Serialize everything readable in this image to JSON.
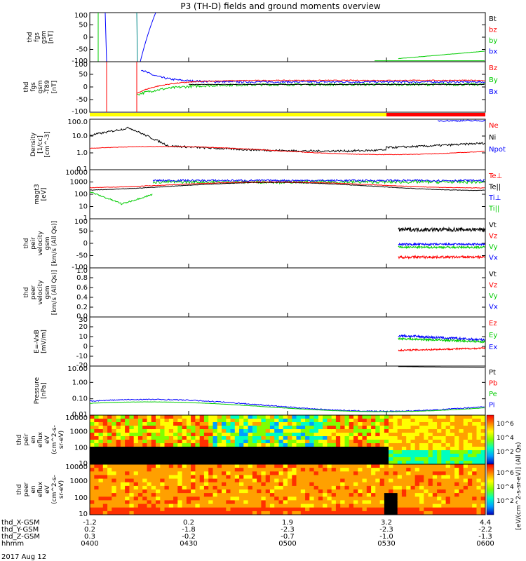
{
  "title": "P3 (TH-D) fields and ground moments overview",
  "date_label": "2017 Aug 12",
  "colors": {
    "black": "#000000",
    "red": "#ff0000",
    "green": "#00cc00",
    "blue": "#0000ff",
    "yellow": "#ffff00"
  },
  "chart_data": [
    {
      "type": "line",
      "ylabel": [
        "thd",
        "fgs",
        "gsm",
        "[nT]"
      ],
      "yticks": [
        "100",
        "50",
        "0",
        "-50",
        "-100"
      ],
      "ylim": [
        -100,
        100
      ],
      "legend": [
        {
          "name": "Bt",
          "color": "black"
        },
        {
          "name": "bz",
          "color": "red"
        },
        {
          "name": "by",
          "color": "green"
        },
        {
          "name": "bx",
          "color": "blue"
        }
      ]
    },
    {
      "type": "line",
      "ylabel": [
        "thd",
        "fgs",
        "gsm",
        "-T89",
        "[nT]"
      ],
      "yticks": [
        "100",
        "50",
        "0",
        "-50",
        "-100"
      ],
      "ylim": [
        -120,
        120
      ],
      "legend": [
        {
          "name": "Bz",
          "color": "red"
        },
        {
          "name": "By",
          "color": "green"
        },
        {
          "name": "Bx",
          "color": "blue"
        }
      ]
    },
    {
      "type": "line",
      "ylabel": [
        "Density",
        "[1/cc]",
        "[cm^-3]"
      ],
      "yticks": [
        "100.0",
        "10.0",
        "1.0",
        "0.1"
      ],
      "log": true,
      "legend": [
        {
          "name": "Ne",
          "color": "red"
        },
        {
          "name": "Ni",
          "color": "black"
        },
        {
          "name": "Npot",
          "color": "blue"
        }
      ]
    },
    {
      "type": "line",
      "ylabel": [
        "magt3",
        "[eV]"
      ],
      "yticks": [
        "10000",
        "1000",
        "100",
        "10",
        "1"
      ],
      "log": true,
      "legend": [
        {
          "name": "Te⊥",
          "color": "red"
        },
        {
          "name": "Te||",
          "color": "black"
        },
        {
          "name": "Ti⊥",
          "color": "blue"
        },
        {
          "name": "Ti||",
          "color": "green"
        }
      ]
    },
    {
      "type": "line",
      "ylabel": [
        "thd",
        "peir",
        "velocity",
        "gsm",
        "[km/s (All Qs)]"
      ],
      "yticks": [
        "100",
        "50",
        "0",
        "-50",
        "-100"
      ],
      "ylim": [
        -120,
        120
      ],
      "legend": [
        {
          "name": "Vt",
          "color": "black"
        },
        {
          "name": "Vz",
          "color": "red"
        },
        {
          "name": "Vy",
          "color": "green"
        },
        {
          "name": "Vx",
          "color": "blue"
        }
      ]
    },
    {
      "type": "line",
      "ylabel": [
        "thd",
        "peer",
        "velocity",
        "gsm",
        "[km/s (All Qs)]"
      ],
      "yticks": [
        "1.0",
        "0.8",
        "0.6",
        "0.4",
        "0.2",
        "0.0"
      ],
      "ylim": [
        0,
        1
      ],
      "legend": [
        {
          "name": "Vt",
          "color": "black"
        },
        {
          "name": "Vz",
          "color": "red"
        },
        {
          "name": "Vy",
          "color": "green"
        },
        {
          "name": "Vx",
          "color": "blue"
        }
      ]
    },
    {
      "type": "line",
      "ylabel": [
        "E=-VxB",
        "[mV/m]"
      ],
      "yticks": [
        "30",
        "20",
        "10",
        "0",
        "-10",
        "-20"
      ],
      "ylim": [
        -20,
        30
      ],
      "legend": [
        {
          "name": "Ez",
          "color": "red"
        },
        {
          "name": "Ey",
          "color": "green"
        },
        {
          "name": "Ex",
          "color": "blue"
        }
      ]
    },
    {
      "type": "line",
      "ylabel": [
        "Pressure",
        "[nPa]"
      ],
      "yticks": [
        "10.00",
        "1.00",
        "0.10",
        "0.01"
      ],
      "log": true,
      "legend": [
        {
          "name": "Pt",
          "color": "black"
        },
        {
          "name": "Pb",
          "color": "red"
        },
        {
          "name": "Pe",
          "color": "green"
        },
        {
          "name": "Pi",
          "color": "blue"
        }
      ]
    },
    {
      "type": "heatmap",
      "ylabel": [
        "thd",
        "peir",
        "en",
        "eflux",
        "eV",
        "(cm^2-s-",
        "sr-eV)"
      ],
      "yticks": [
        "10000",
        "1000",
        "100",
        "10"
      ],
      "log": true
    },
    {
      "type": "heatmap",
      "ylabel": [
        "thd",
        "peer",
        "en",
        "eflux",
        "eV",
        "(cm^2-s-",
        "sr-eV)"
      ],
      "yticks": [
        "10000",
        "1000",
        "100",
        "10"
      ],
      "log": true
    }
  ],
  "colorbar": {
    "title": "[eV/(cm^2-s-sr-eV)] (All Qs)",
    "ticks": [
      "10^6",
      "10^4",
      "10^2"
    ]
  },
  "orbit_rows": [
    {
      "label": "thd_X-GSM",
      "values": [
        "-1.2",
        "0.2",
        "1.9",
        "3.2",
        "4.4"
      ]
    },
    {
      "label": "thd_Y-GSM",
      "values": [
        "0.2",
        "-1.8",
        "-2.3",
        "-2.3",
        "-2.2"
      ]
    },
    {
      "label": "thd_Z-GSM",
      "values": [
        "0.3",
        "-0.2",
        "-0.7",
        "-1.0",
        "-1.3"
      ]
    },
    {
      "label": "hhmm",
      "values": [
        "0400",
        "0430",
        "0500",
        "0530",
        "0600"
      ]
    }
  ]
}
